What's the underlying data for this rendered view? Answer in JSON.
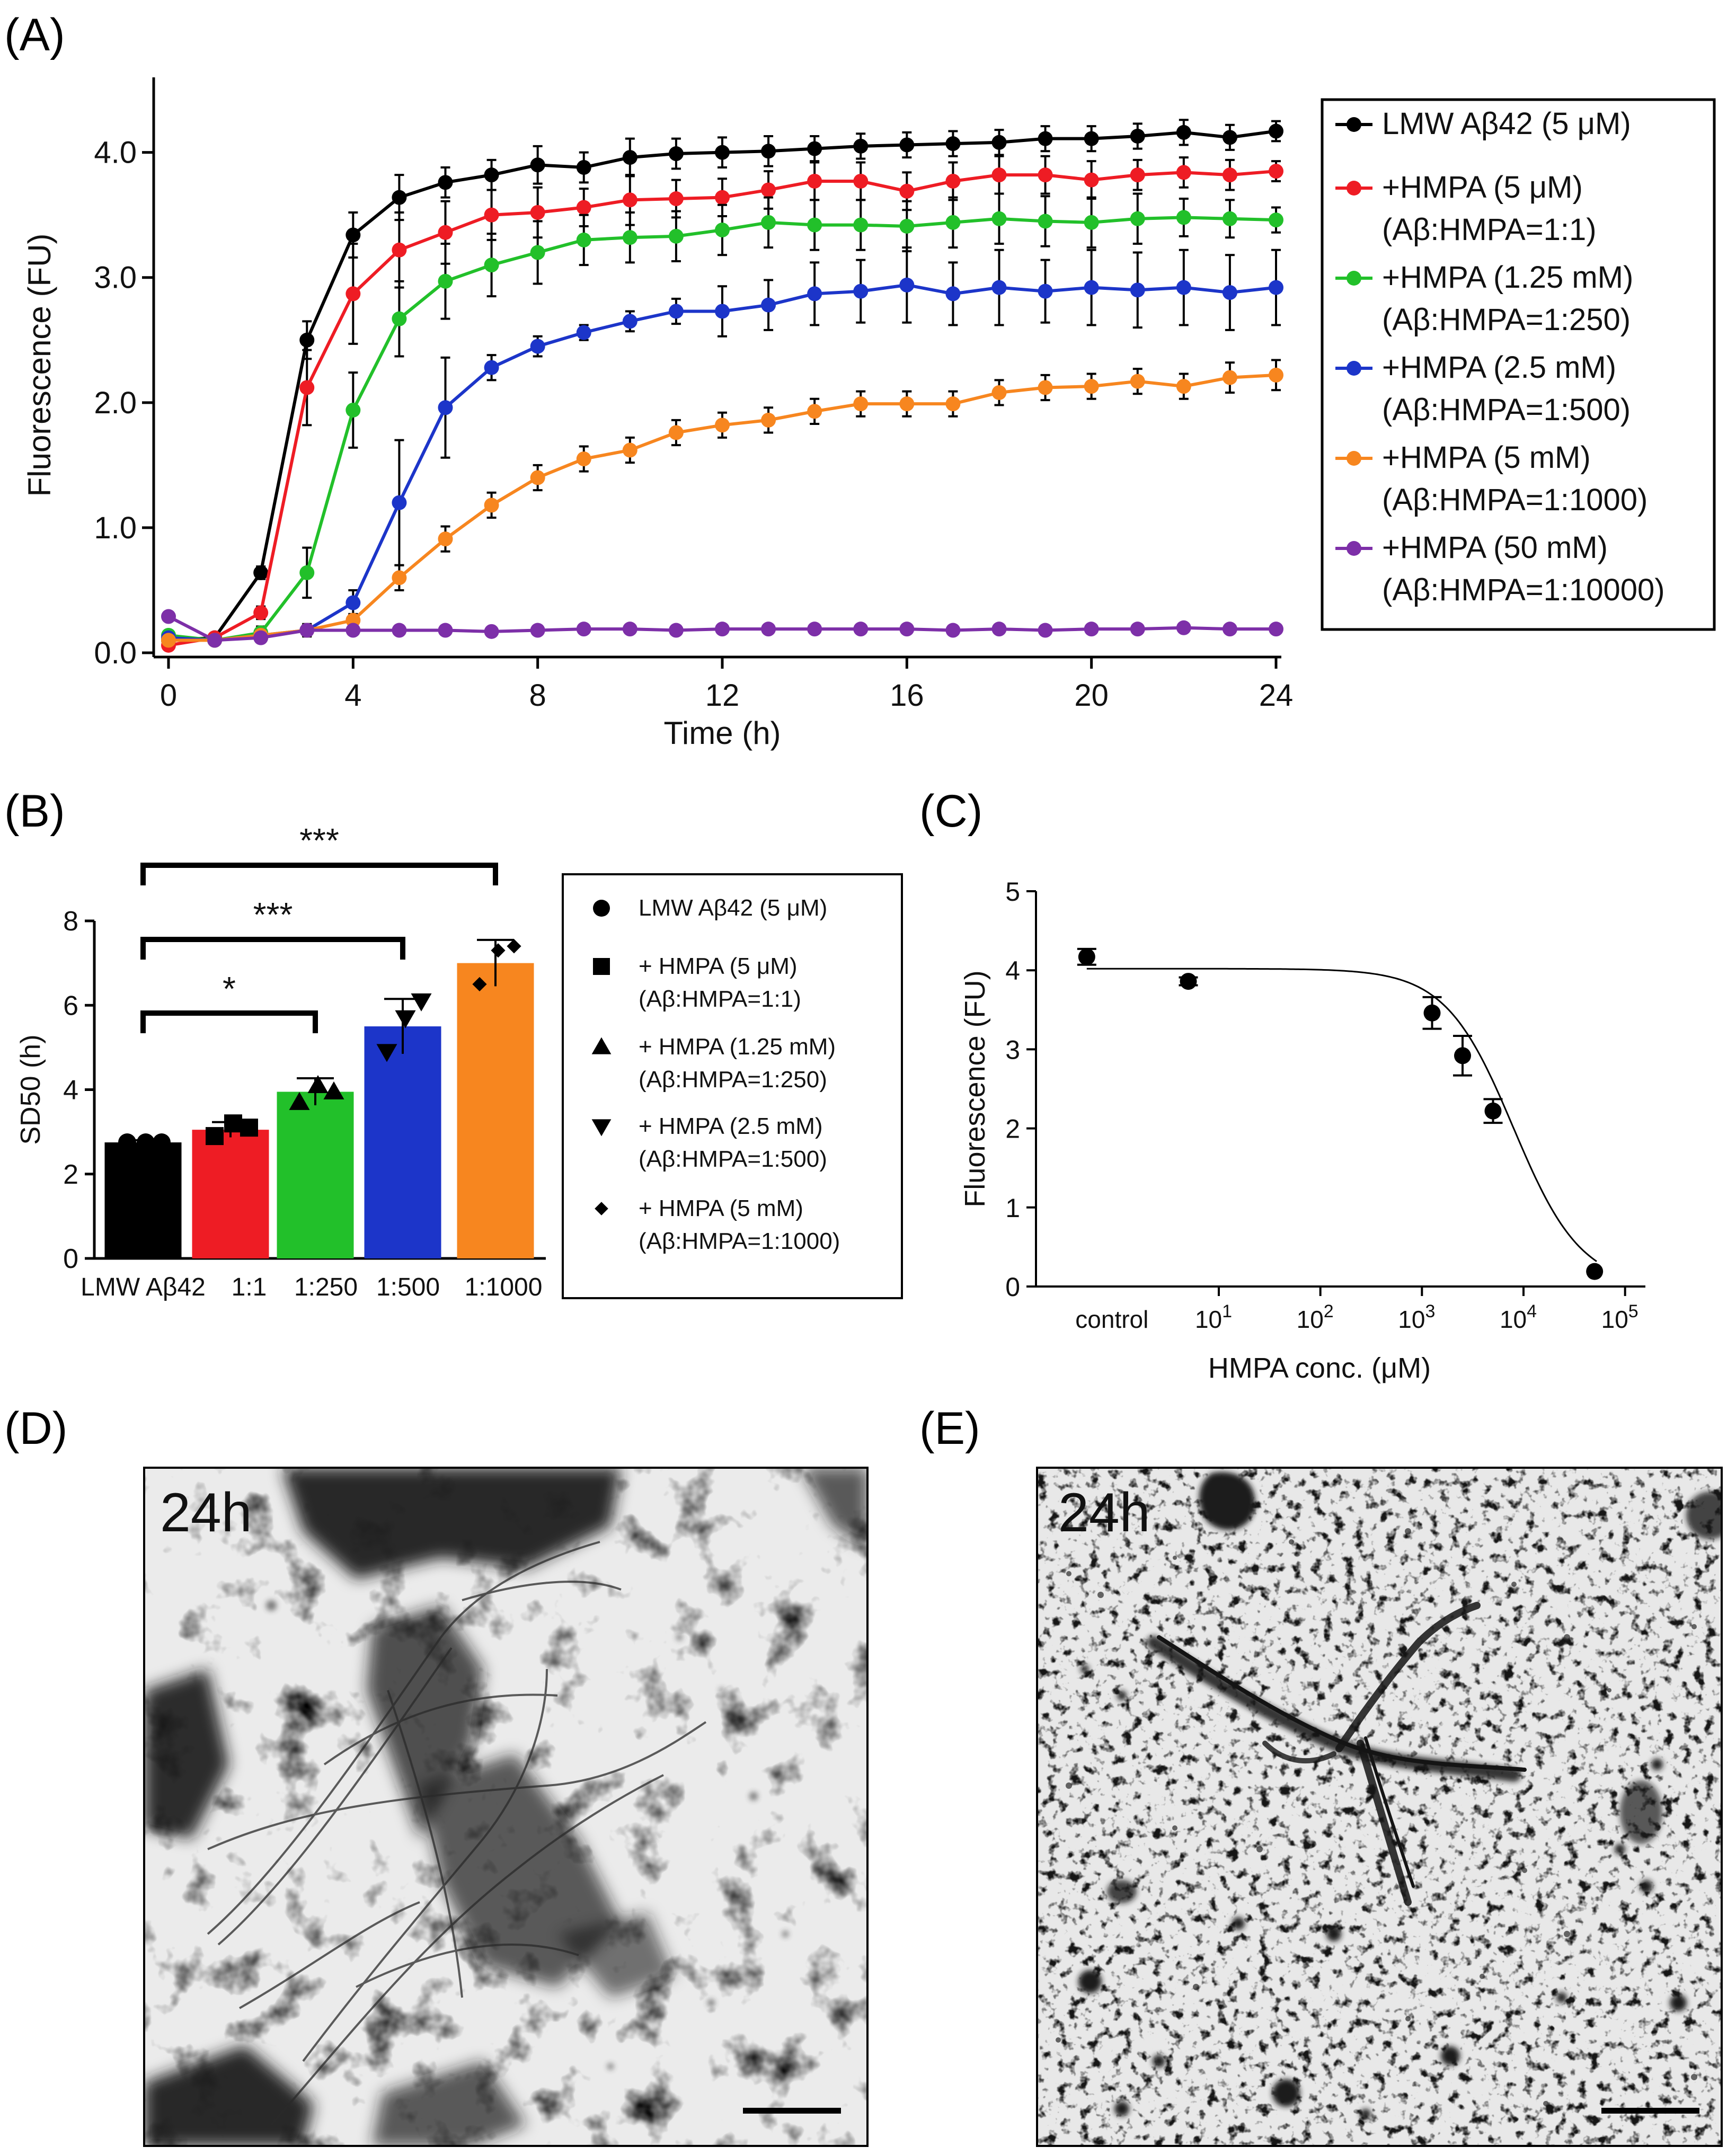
{
  "panel_labels": {
    "a": "(A)",
    "b": "(B)",
    "c": "(C)",
    "d": "(D)",
    "e": "(E)"
  },
  "chart_data": [
    {
      "id": "A",
      "type": "line",
      "xlabel": "Time (h)",
      "ylabel": "Fluorescence (FU)",
      "xlim": [
        0,
        24
      ],
      "ylim": [
        0,
        4.6
      ],
      "xticks": [
        0,
        4,
        8,
        12,
        16,
        20,
        24
      ],
      "yticks": [
        0.0,
        1.0,
        2.0,
        3.0,
        4.0
      ],
      "ytick_labels": [
        "0.0",
        "1.0",
        "2.0",
        "3.0",
        "4.0"
      ],
      "x": [
        0,
        1,
        2,
        3,
        4,
        5,
        6,
        7,
        8,
        9,
        10,
        11,
        12,
        13,
        14,
        15,
        16,
        17,
        18,
        19,
        20,
        21,
        22,
        23,
        24
      ],
      "series": [
        {
          "name": "LMW Aβ42 (5 μM)",
          "color": "#000000",
          "values": [
            0.1,
            0.12,
            0.64,
            2.5,
            3.34,
            3.64,
            3.76,
            3.82,
            3.9,
            3.88,
            3.96,
            3.99,
            4.0,
            4.01,
            4.03,
            4.05,
            4.06,
            4.07,
            4.08,
            4.11,
            4.11,
            4.13,
            4.16,
            4.12,
            4.17
          ],
          "errors": [
            0.03,
            0.03,
            0.05,
            0.15,
            0.18,
            0.18,
            0.12,
            0.12,
            0.15,
            0.12,
            0.15,
            0.12,
            0.12,
            0.12,
            0.1,
            0.1,
            0.1,
            0.1,
            0.1,
            0.1,
            0.1,
            0.1,
            0.1,
            0.1,
            0.08
          ]
        },
        {
          "name": "+HMPA (5 μM)",
          "name2": "(Aβ:HMPA=1:1)",
          "color": "#ee1c24",
          "values": [
            0.06,
            0.12,
            0.32,
            2.12,
            2.87,
            3.22,
            3.36,
            3.5,
            3.52,
            3.56,
            3.62,
            3.63,
            3.64,
            3.7,
            3.77,
            3.77,
            3.69,
            3.77,
            3.82,
            3.82,
            3.78,
            3.82,
            3.84,
            3.82,
            3.85
          ],
          "errors": [
            0.03,
            0.03,
            0.05,
            0.3,
            0.4,
            0.3,
            0.25,
            0.2,
            0.2,
            0.15,
            0.2,
            0.15,
            0.15,
            0.15,
            0.15,
            0.15,
            0.15,
            0.15,
            0.15,
            0.15,
            0.15,
            0.12,
            0.12,
            0.12,
            0.08
          ]
        },
        {
          "name": "+HMPA (1.25 mM)",
          "name2": "(Aβ:HMPA=1:250)",
          "color": "#22c02a",
          "values": [
            0.14,
            0.1,
            0.16,
            0.64,
            1.94,
            2.67,
            2.97,
            3.1,
            3.2,
            3.3,
            3.32,
            3.33,
            3.38,
            3.44,
            3.42,
            3.42,
            3.41,
            3.44,
            3.47,
            3.45,
            3.44,
            3.47,
            3.48,
            3.47,
            3.46
          ],
          "errors": [
            0.03,
            0.03,
            0.05,
            0.2,
            0.3,
            0.3,
            0.3,
            0.25,
            0.25,
            0.2,
            0.2,
            0.2,
            0.2,
            0.2,
            0.2,
            0.2,
            0.2,
            0.2,
            0.2,
            0.2,
            0.2,
            0.2,
            0.15,
            0.15,
            0.1
          ]
        },
        {
          "name": "+HMPA (2.5 mM)",
          "name2": "(Aβ:HMPA=1:500)",
          "color": "#1c35c9",
          "values": [
            0.12,
            0.1,
            0.14,
            0.18,
            0.4,
            1.2,
            1.96,
            2.28,
            2.45,
            2.56,
            2.65,
            2.73,
            2.73,
            2.78,
            2.87,
            2.89,
            2.94,
            2.87,
            2.92,
            2.89,
            2.92,
            2.9,
            2.92,
            2.88,
            2.92
          ],
          "errors": [
            0.03,
            0.03,
            0.04,
            0.05,
            0.1,
            0.5,
            0.4,
            0.1,
            0.08,
            0.06,
            0.08,
            0.1,
            0.2,
            0.2,
            0.25,
            0.25,
            0.3,
            0.25,
            0.3,
            0.25,
            0.3,
            0.3,
            0.3,
            0.3,
            0.3
          ]
        },
        {
          "name": "+HMPA (5 mM)",
          "name2": "(Aβ:HMPA=1:1000)",
          "color": "#f7861f",
          "values": [
            0.1,
            0.1,
            0.14,
            0.18,
            0.26,
            0.6,
            0.91,
            1.18,
            1.4,
            1.55,
            1.62,
            1.76,
            1.82,
            1.86,
            1.93,
            1.99,
            1.99,
            1.99,
            2.08,
            2.12,
            2.13,
            2.17,
            2.13,
            2.2,
            2.22
          ],
          "errors": [
            0.03,
            0.03,
            0.03,
            0.04,
            0.05,
            0.1,
            0.1,
            0.1,
            0.1,
            0.1,
            0.1,
            0.1,
            0.1,
            0.1,
            0.1,
            0.1,
            0.1,
            0.1,
            0.1,
            0.1,
            0.1,
            0.1,
            0.1,
            0.12,
            0.12
          ]
        },
        {
          "name": "+HMPA (50 mM)",
          "name2": "(Aβ:HMPA=1:10000)",
          "color": "#7d2fa8",
          "values": [
            0.29,
            0.1,
            0.12,
            0.18,
            0.18,
            0.18,
            0.18,
            0.17,
            0.18,
            0.19,
            0.19,
            0.18,
            0.19,
            0.19,
            0.19,
            0.19,
            0.19,
            0.18,
            0.19,
            0.18,
            0.19,
            0.19,
            0.2,
            0.19,
            0.19
          ],
          "errors": [
            0.03,
            0.02,
            0.02,
            0.02,
            0.02,
            0.02,
            0.02,
            0.02,
            0.02,
            0.02,
            0.02,
            0.02,
            0.02,
            0.02,
            0.02,
            0.02,
            0.02,
            0.02,
            0.02,
            0.02,
            0.02,
            0.02,
            0.02,
            0.02,
            0.02
          ]
        }
      ]
    },
    {
      "id": "B",
      "type": "bar",
      "ylabel": "SD50 (h)",
      "ylim": [
        0,
        8
      ],
      "yticks": [
        0,
        2,
        4,
        6,
        8
      ],
      "categories": [
        "LMW Aβ42",
        "1:1",
        "1:250",
        "1:500",
        "1:1000"
      ],
      "values": [
        2.75,
        3.05,
        3.95,
        5.5,
        7.0
      ],
      "errors": [
        0.05,
        0.18,
        0.32,
        0.65,
        0.55
      ],
      "colors": [
        "#000000",
        "#ee1c24",
        "#22c02a",
        "#1c35c9",
        "#f7861f"
      ],
      "markers": [
        "circle",
        "square",
        "triangle-up",
        "triangle-down",
        "diamond"
      ],
      "points": [
        [
          2.75,
          2.75,
          2.75
        ],
        [
          2.9,
          3.2,
          3.1
        ],
        [
          3.7,
          4.1,
          3.95
        ],
        [
          4.9,
          5.7,
          6.1
        ],
        [
          6.5,
          7.3,
          7.4
        ]
      ],
      "significance": [
        {
          "from": 0,
          "to": 2,
          "label": "*"
        },
        {
          "from": 0,
          "to": 3,
          "label": "***"
        },
        {
          "from": 0,
          "to": 4,
          "label": "***"
        }
      ],
      "legend": [
        {
          "marker": "circle",
          "line1": "LMW Aβ42 (5 μM)"
        },
        {
          "marker": "square",
          "line1": "+ HMPA (5 μM)",
          "line2": "(Aβ:HMPA=1:1)"
        },
        {
          "marker": "triangle-up",
          "line1": "+ HMPA (1.25 mM)",
          "line2": "(Aβ:HMPA=1:250)"
        },
        {
          "marker": "triangle-down",
          "line1": "+ HMPA (2.5 mM)",
          "line2": "(Aβ:HMPA=1:500)"
        },
        {
          "marker": "diamond",
          "line1": "+ HMPA (5 mM)",
          "line2": "(Aβ:HMPA=1:1000)"
        }
      ]
    },
    {
      "id": "C",
      "type": "scatter",
      "xlabel": "HMPA conc. (μM)",
      "ylabel": "Fluorescence (FU)",
      "xscale": "log",
      "xlim_log10": [
        -0.8,
        5.2
      ],
      "ylim": [
        0,
        5
      ],
      "yticks": [
        0,
        1,
        2,
        3,
        4,
        5
      ],
      "xtick_labels": [
        {
          "pos": 0,
          "label": "control"
        },
        {
          "pos": 1,
          "base": "10",
          "exp": "1"
        },
        {
          "pos": 2,
          "base": "10",
          "exp": "2"
        },
        {
          "pos": 3,
          "base": "10",
          "exp": "3"
        },
        {
          "pos": 4,
          "base": "10",
          "exp": "4"
        },
        {
          "pos": 5,
          "base": "10",
          "exp": "5"
        }
      ],
      "points": [
        {
          "log10x": -0.3,
          "y": 4.17,
          "err": 0.1
        },
        {
          "log10x": 0.7,
          "y": 3.86,
          "err": 0.05
        },
        {
          "log10x": 3.1,
          "y": 3.46,
          "err": 0.2
        },
        {
          "log10x": 3.4,
          "y": 2.92,
          "err": 0.25
        },
        {
          "log10x": 3.7,
          "y": 2.22,
          "err": 0.15
        },
        {
          "log10x": 4.7,
          "y": 0.19,
          "err": 0.03
        }
      ],
      "fit": {
        "top": 4.02,
        "bottom": 0.0,
        "log_ic50": 3.9,
        "hill": 1.3
      }
    }
  ],
  "micrographs": {
    "d": {
      "time_label": "24h"
    },
    "e": {
      "time_label": "24h"
    }
  }
}
